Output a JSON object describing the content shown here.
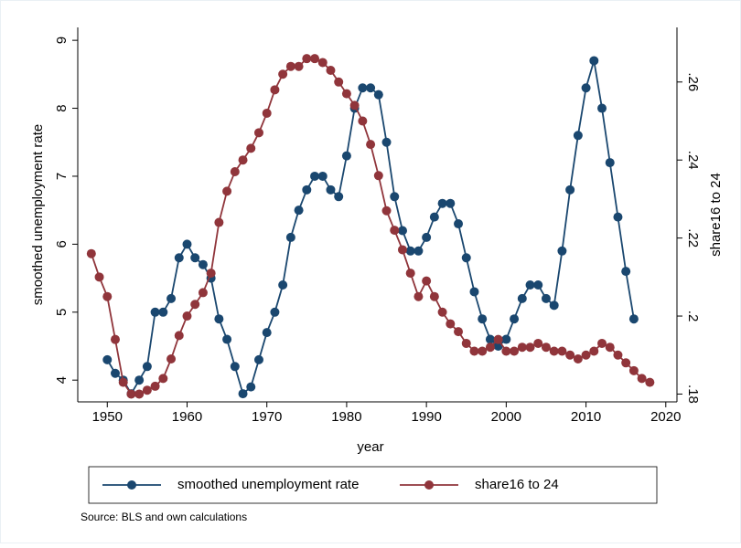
{
  "chart_data": {
    "type": "line",
    "xlabel": "year",
    "ylabel": "smoothed unemployment rate",
    "y2label": "share16 to 24",
    "note": "Source: BLS and own calculations",
    "x": [
      1948,
      1949,
      1950,
      1951,
      1952,
      1953,
      1954,
      1955,
      1956,
      1957,
      1958,
      1959,
      1960,
      1961,
      1962,
      1963,
      1964,
      1965,
      1966,
      1967,
      1968,
      1969,
      1970,
      1971,
      1972,
      1973,
      1974,
      1975,
      1976,
      1977,
      1978,
      1979,
      1980,
      1981,
      1982,
      1983,
      1984,
      1985,
      1986,
      1987,
      1988,
      1989,
      1990,
      1991,
      1992,
      1993,
      1994,
      1995,
      1996,
      1997,
      1998,
      1999,
      2000,
      2001,
      2002,
      2003,
      2004,
      2005,
      2006,
      2007,
      2008,
      2009,
      2010,
      2011,
      2012,
      2013,
      2014,
      2015,
      2016,
      2017,
      2018
    ],
    "series": [
      {
        "name": "smoothed unemployment rate",
        "color": "#1a476f",
        "axis": "y",
        "values": [
          null,
          null,
          4.3,
          4.1,
          4.0,
          3.8,
          4.0,
          4.2,
          5.0,
          5.0,
          5.2,
          5.8,
          6.0,
          5.8,
          5.7,
          5.5,
          4.9,
          4.6,
          4.2,
          3.8,
          3.9,
          4.3,
          4.7,
          5.0,
          5.4,
          6.1,
          6.5,
          6.8,
          7.0,
          7.0,
          6.8,
          6.7,
          7.3,
          8.0,
          8.3,
          8.3,
          8.2,
          7.5,
          6.7,
          6.2,
          5.9,
          5.9,
          6.1,
          6.4,
          6.6,
          6.6,
          6.3,
          5.8,
          5.3,
          4.9,
          4.6,
          4.5,
          4.6,
          4.9,
          5.2,
          5.4,
          5.4,
          5.2,
          5.1,
          5.9,
          6.8,
          7.6,
          8.3,
          8.7,
          8.0,
          7.2,
          6.4,
          5.6,
          4.9,
          null,
          null
        ]
      },
      {
        "name": "share16 to 24",
        "color": "#90353b",
        "axis": "y2",
        "values": [
          0.216,
          0.21,
          0.205,
          0.194,
          0.183,
          0.18,
          0.18,
          0.181,
          0.182,
          0.184,
          0.189,
          0.195,
          0.2,
          0.203,
          0.206,
          0.211,
          0.224,
          0.232,
          0.237,
          0.24,
          0.243,
          0.247,
          0.252,
          0.258,
          0.262,
          0.264,
          0.264,
          0.266,
          0.266,
          0.265,
          0.263,
          0.26,
          0.257,
          0.254,
          0.25,
          0.244,
          0.236,
          0.227,
          0.222,
          0.217,
          0.211,
          0.205,
          0.209,
          0.205,
          0.201,
          0.198,
          0.196,
          0.193,
          0.191,
          0.191,
          0.192,
          0.194,
          0.191,
          0.191,
          0.192,
          0.192,
          0.193,
          0.192,
          0.191,
          0.191,
          0.19,
          0.189,
          0.19,
          0.191,
          0.193,
          0.192,
          0.19,
          0.188,
          0.186,
          0.184,
          0.183
        ]
      }
    ],
    "xlim": [
      1946.3,
      2021.4
    ],
    "xticks": [
      1950,
      1960,
      1970,
      1980,
      1990,
      2000,
      2010,
      2020
    ],
    "ylim": [
      3.68,
      9.19
    ],
    "yticks": [
      4,
      5,
      6,
      7,
      8,
      9
    ],
    "y2lim": [
      0.178,
      0.274
    ],
    "y2ticks": [
      {
        "value": 0.18,
        "label": ".18"
      },
      {
        "value": 0.2,
        "label": ".2"
      },
      {
        "value": 0.22,
        "label": ".22"
      },
      {
        "value": 0.24,
        "label": ".24"
      },
      {
        "value": 0.26,
        "label": ".26"
      }
    ],
    "legend": "bottom"
  }
}
